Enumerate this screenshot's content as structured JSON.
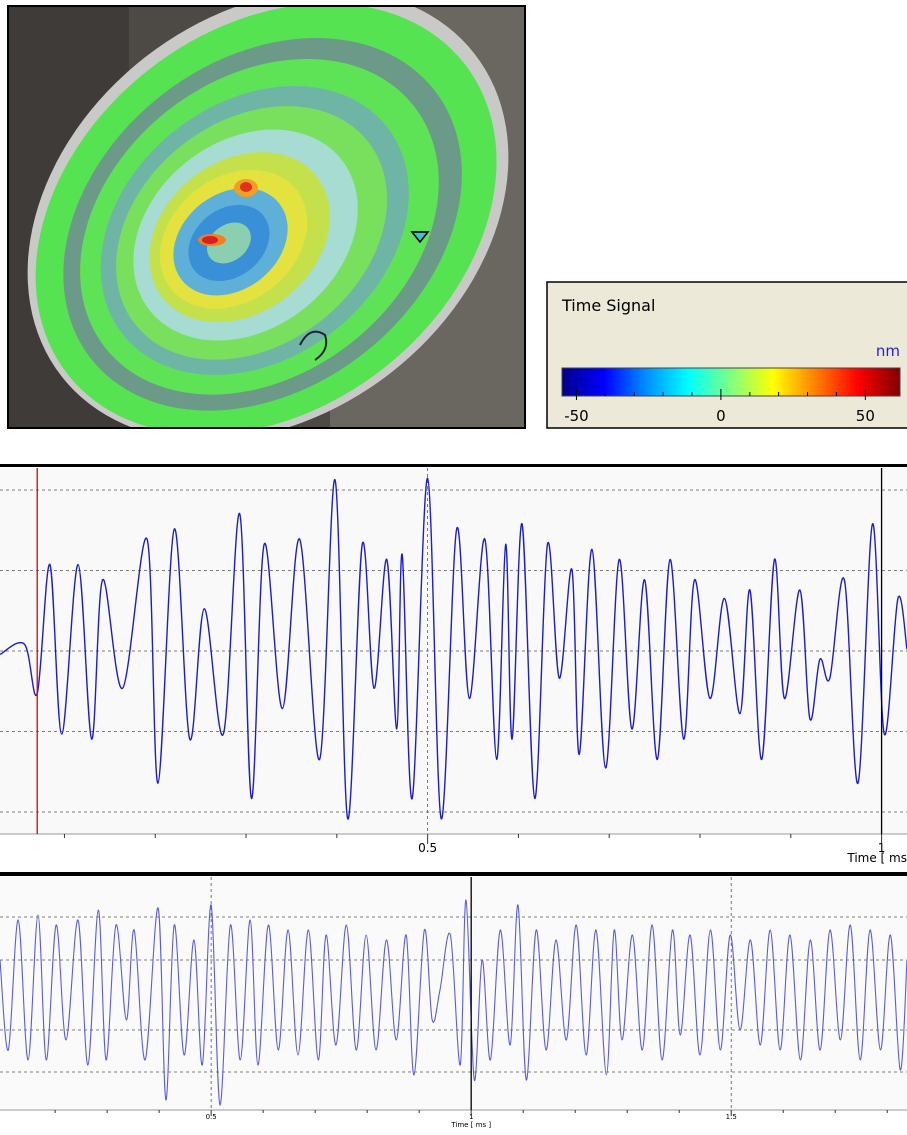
{
  "colorbar": {
    "title": "Time Signal",
    "unit": "nm",
    "lim": [
      -55,
      62
    ],
    "ticks": [
      -50,
      0,
      50
    ],
    "minor_ticks": [
      -40,
      -30,
      -20,
      -10,
      10,
      20,
      30,
      40
    ],
    "colors": [
      "#00008b",
      "#0000ff",
      "#0090ff",
      "#00ffff",
      "#80ff80",
      "#ffff00",
      "#ff8000",
      "#ff0000",
      "#7f0000"
    ]
  },
  "chart_data": [
    {
      "type": "line",
      "x_label": "Time [ ms",
      "xlim": [
        0.029,
        1.028
      ],
      "ylim": [
        -1.08,
        1.08
      ],
      "xticks": [
        0.5,
        1
      ],
      "minor_xticks": [
        0.1,
        0.2,
        0.3,
        0.4,
        0.6,
        0.7,
        0.8,
        0.9
      ],
      "xgrid": [
        0.5
      ],
      "ygrid": [
        -0.95,
        -0.475,
        0,
        0.475,
        0.95
      ],
      "cursors": [
        {
          "x": 0.07,
          "color": "#e00000"
        },
        {
          "x": 1,
          "color": "#000000"
        }
      ],
      "x": [
        0.029,
        0.056,
        0.07,
        0.084,
        0.097,
        0.115,
        0.13,
        0.142,
        0.164,
        0.191,
        0.203,
        0.221,
        0.238,
        0.254,
        0.275,
        0.293,
        0.306,
        0.32,
        0.34,
        0.359,
        0.381,
        0.398,
        0.412,
        0.428,
        0.441,
        0.455,
        0.466,
        0.472,
        0.483,
        0.5,
        0.515,
        0.532,
        0.546,
        0.563,
        0.576,
        0.586,
        0.593,
        0.604,
        0.618,
        0.632,
        0.645,
        0.659,
        0.667,
        0.681,
        0.696,
        0.711,
        0.725,
        0.739,
        0.753,
        0.767,
        0.782,
        0.794,
        0.811,
        0.827,
        0.844,
        0.855,
        0.868,
        0.882,
        0.893,
        0.91,
        0.921,
        0.932,
        0.943,
        0.959,
        0.974,
        0.99,
        1.003,
        1.018,
        1.028
      ],
      "series": [
        {
          "color": "#1c1cd0",
          "values": [
            -0.02,
            0.04,
            -0.25,
            0.51,
            -0.49,
            0.51,
            -0.52,
            0.42,
            -0.22,
            0.66,
            -0.78,
            0.72,
            -0.52,
            0.25,
            -0.49,
            0.81,
            -0.87,
            0.63,
            -0.34,
            0.66,
            -0.64,
            1.01,
            -0.99,
            0.63,
            -0.22,
            0.54,
            -0.46,
            0.57,
            -0.87,
            1.02,
            -0.99,
            0.72,
            -0.28,
            0.66,
            -0.64,
            0.63,
            -0.52,
            0.75,
            -0.87,
            0.63,
            -0.16,
            0.48,
            -0.61,
            0.6,
            -0.69,
            0.54,
            -0.46,
            0.42,
            -0.64,
            0.54,
            -0.52,
            0.42,
            -0.28,
            0.31,
            -0.37,
            0.36,
            -0.64,
            0.54,
            -0.28,
            0.36,
            -0.4,
            -0.05,
            -0.16,
            0.42,
            -0.78,
            0.75,
            -0.49,
            0.31,
            0.01
          ]
        }
      ]
    },
    {
      "type": "line",
      "x_label": "Time [ ms ]",
      "xlim": [
        0.094,
        1.838
      ],
      "ylim": [
        -1.15,
        1.18
      ],
      "xticks": [
        0.5,
        1,
        1.5
      ],
      "minor_xticks": [
        0.2,
        0.3,
        0.4,
        0.6,
        0.7,
        0.8,
        0.9,
        1.1,
        1.2,
        1.3,
        1.4,
        1.6,
        1.7,
        1.8
      ],
      "xgrid": [
        0.5,
        1.5
      ],
      "ygrid": [
        -0.77,
        -0.35,
        0.35,
        0.78
      ],
      "cursors": [
        {
          "x": 1,
          "color": "#000000"
        }
      ],
      "x": [
        0.094,
        0.11,
        0.129,
        0.148,
        0.167,
        0.183,
        0.202,
        0.221,
        0.244,
        0.263,
        0.283,
        0.298,
        0.317,
        0.337,
        0.352,
        0.373,
        0.398,
        0.413,
        0.429,
        0.448,
        0.467,
        0.483,
        0.5,
        0.517,
        0.537,
        0.556,
        0.575,
        0.59,
        0.61,
        0.629,
        0.648,
        0.667,
        0.687,
        0.706,
        0.721,
        0.74,
        0.76,
        0.779,
        0.798,
        0.817,
        0.837,
        0.856,
        0.875,
        0.89,
        0.91,
        0.925,
        0.94,
        0.96,
        0.979,
        0.99,
        1.006,
        1.021,
        1.037,
        1.056,
        1.075,
        1.09,
        1.106,
        1.125,
        1.144,
        1.163,
        1.183,
        1.202,
        1.221,
        1.24,
        1.26,
        1.275,
        1.29,
        1.31,
        1.329,
        1.348,
        1.367,
        1.387,
        1.402,
        1.421,
        1.44,
        1.46,
        1.479,
        1.498,
        1.517,
        1.537,
        1.556,
        1.575,
        1.594,
        1.613,
        1.633,
        1.652,
        1.671,
        1.69,
        1.71,
        1.729,
        1.748,
        1.767,
        1.787,
        1.806,
        1.825,
        1.838
      ],
      "series": [
        {
          "color": "#5a5ae6",
          "values": [
            0.35,
            -0.55,
            0.75,
            -0.65,
            0.8,
            -0.65,
            0.7,
            -0.45,
            0.75,
            -0.7,
            0.85,
            -0.65,
            0.7,
            -0.25,
            0.65,
            -0.65,
            0.87,
            -1.05,
            0.7,
            -0.6,
            0.55,
            -0.7,
            0.9,
            -1.1,
            0.7,
            -0.65,
            0.75,
            -0.7,
            0.7,
            -0.55,
            0.65,
            -0.6,
            0.65,
            -0.65,
            0.6,
            -0.5,
            0.7,
            -0.55,
            0.6,
            -0.55,
            0.55,
            -0.45,
            0.6,
            -0.8,
            0.65,
            -0.25,
            0.05,
            0.6,
            -0.7,
            0.95,
            -0.85,
            0.35,
            -0.65,
            0.65,
            -0.5,
            0.9,
            -0.85,
            0.65,
            -0.55,
            0.55,
            -0.45,
            0.7,
            -0.6,
            0.65,
            -0.8,
            0.65,
            -0.45,
            0.6,
            -0.55,
            0.7,
            -0.65,
            0.65,
            -0.4,
            0.6,
            -0.6,
            0.65,
            -0.55,
            0.6,
            -0.35,
            0.55,
            -0.5,
            0.65,
            -0.55,
            0.6,
            -0.65,
            0.55,
            -0.55,
            0.65,
            -0.45,
            0.7,
            -0.65,
            0.65,
            -0.55,
            0.6,
            -0.75,
            0.35
          ]
        }
      ]
    }
  ]
}
